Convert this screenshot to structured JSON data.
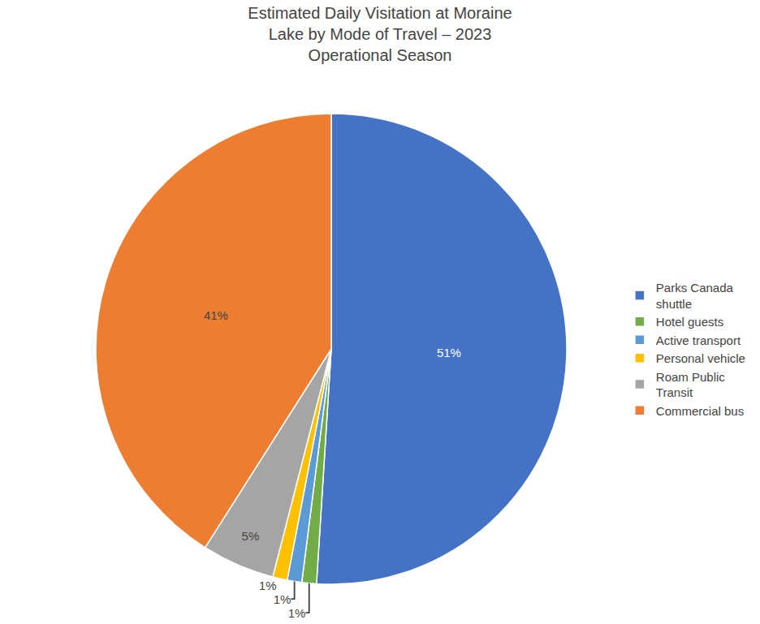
{
  "chart_data": {
    "type": "pie",
    "title": "Estimated Daily Visitation at Moraine\nLake by Mode of Travel – 2023\nOperational Season",
    "categories": [
      "Parks Canada\nshuttle",
      "Hotel guests",
      "Active transport",
      "Personal vehicle",
      "Roam Public\nTransit",
      "Commercial bus"
    ],
    "values": [
      51,
      1,
      1,
      1,
      5,
      41
    ],
    "value_labels": [
      "51%",
      "1%",
      "1%",
      "1%",
      "5%",
      "41%"
    ],
    "colors": [
      "#4472C4",
      "#70AD47",
      "#5B9BD5",
      "#FFC000",
      "#A5A5A5",
      "#ED7D31"
    ],
    "data_labels": true,
    "legend": "right"
  }
}
